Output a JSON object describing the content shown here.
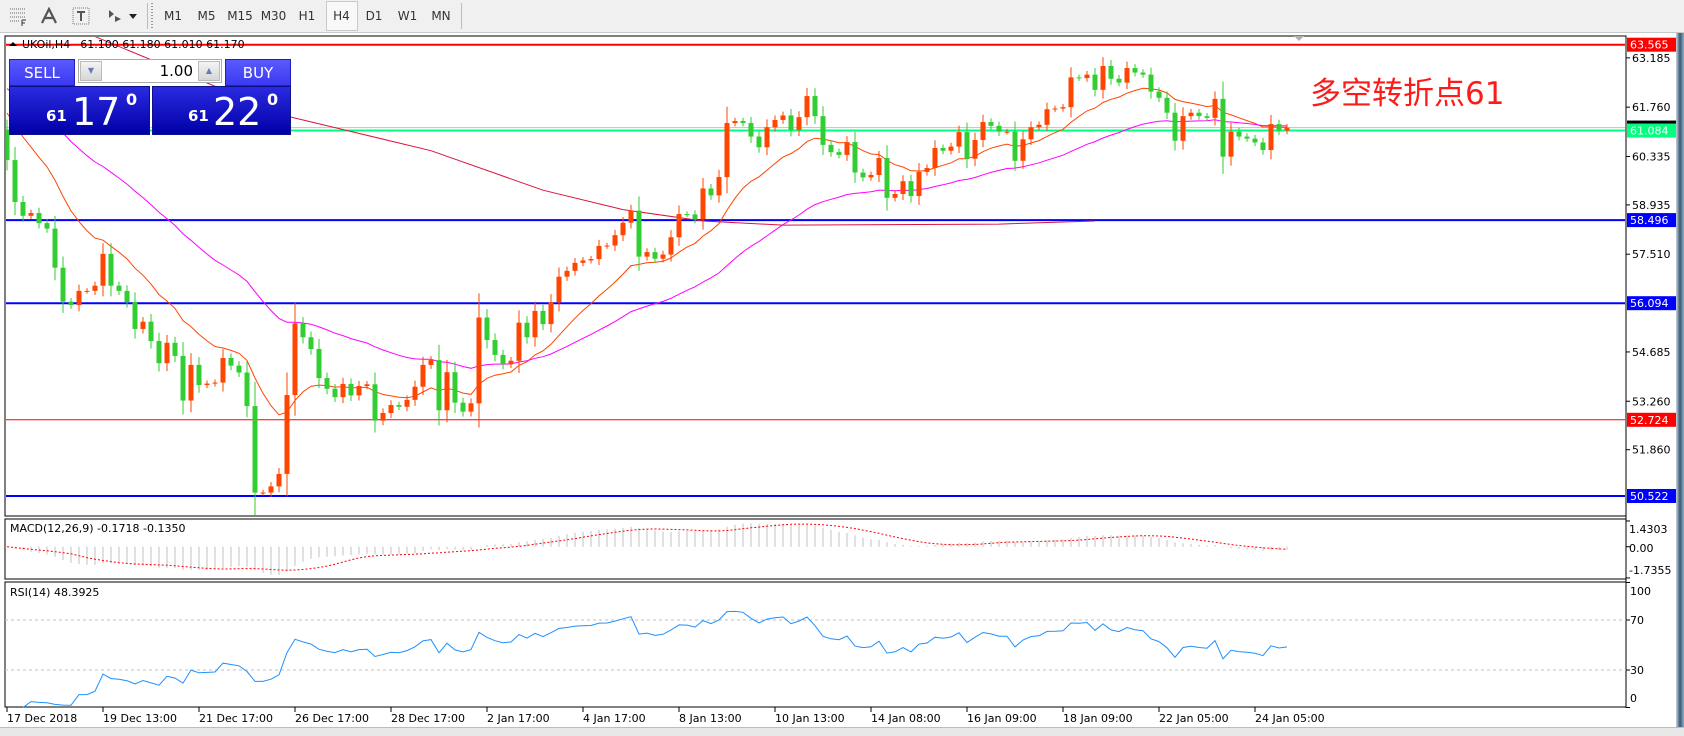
{
  "toolbar": {
    "icons": [
      "objects-list-icon",
      "text-icon",
      "text-label-icon",
      "shapes-icon"
    ],
    "timeframes": [
      "M1",
      "M5",
      "M15",
      "M30",
      "H1",
      "H4",
      "D1",
      "W1",
      "MN"
    ],
    "active_timeframe": "H4"
  },
  "chart_header": {
    "symbol": "UKOil,H4",
    "ohlc": "61.100 61.180 61.010 61.170"
  },
  "trade_panel": {
    "sell_label": "SELL",
    "buy_label": "BUY",
    "lot": "1.00",
    "sell_price_big_figure": "61",
    "sell_price_pips": "17",
    "sell_price_fraction": "0",
    "buy_price_big_figure": "61",
    "buy_price_pips": "22",
    "buy_price_fraction": "0"
  },
  "annotation": "多空转折点61",
  "colors": {
    "bull_candle": "#ff4500",
    "bear_candle": "#32cd32",
    "ma_fast": "#ff4500",
    "ma_mid": "#ff00ff",
    "ma_long": "#dc143c",
    "rsi_line": "#1e90ff",
    "macd_hist": "#c0c0c0",
    "macd_signal": "#ff0000"
  },
  "chart_data": {
    "type": "candlestick",
    "symbol": "UKOil",
    "timeframe": "H4",
    "first_open": 61.1,
    "close": [
      60.23,
      59.02,
      58.62,
      58.7,
      58.41,
      58.25,
      57.12,
      56.14,
      56.04,
      56.45,
      56.45,
      56.6,
      57.52,
      56.6,
      56.45,
      56.13,
      55.35,
      55.56,
      55.0,
      54.36,
      54.95,
      54.57,
      53.28,
      54.31,
      53.73,
      53.77,
      53.8,
      54.51,
      54.29,
      54.09,
      53.12,
      50.62,
      50.62,
      50.8,
      51.16,
      53.44,
      55.51,
      55.11,
      54.77,
      53.93,
      53.62,
      53.38,
      53.76,
      53.43,
      53.7,
      53.75,
      52.7,
      52.92,
      53.15,
      53.1,
      53.3,
      53.68,
      54.31,
      54.45,
      53.0,
      54.1,
      53.22,
      52.96,
      53.2,
      55.68,
      55.03,
      54.6,
      54.33,
      54.43,
      55.53,
      55.11,
      55.87,
      55.49,
      56.12,
      56.86,
      57.03,
      57.26,
      57.33,
      57.37,
      57.75,
      57.76,
      58.06,
      58.42,
      58.77,
      57.44,
      57.57,
      57.38,
      57.5,
      58.0,
      58.67,
      58.66,
      58.52,
      59.41,
      59.21,
      59.74,
      61.3,
      61.36,
      61.3,
      60.91,
      60.6,
      61.18,
      61.39,
      61.52,
      61.1,
      61.47,
      62.08,
      61.5,
      60.67,
      60.46,
      60.38,
      60.75,
      59.87,
      59.73,
      59.8,
      60.29,
      59.14,
      59.25,
      59.62,
      59.19,
      59.89,
      60.0,
      60.58,
      60.5,
      60.62,
      61.04,
      60.27,
      60.81,
      61.33,
      61.22,
      61.05,
      61.05,
      60.21,
      60.83,
      61.18,
      61.25,
      61.7,
      61.72,
      61.76,
      62.62,
      62.6,
      62.7,
      62.26,
      62.95,
      62.58,
      62.47,
      62.89,
      62.76,
      62.7,
      62.21,
      62.03,
      61.6,
      60.79,
      61.5,
      61.6,
      61.5,
      61.45,
      62.0,
      60.33,
      61.05,
      60.91,
      60.85,
      60.74,
      60.52,
      61.27,
      61.08,
      61.17
    ],
    "ma_long_points": [
      [
        11,
        63.8
      ],
      [
        35,
        61.5
      ],
      [
        53,
        60.5
      ],
      [
        67,
        59.36
      ],
      [
        77,
        58.8
      ],
      [
        87,
        58.47
      ],
      [
        97,
        58.35
      ],
      [
        124,
        58.38
      ],
      [
        136,
        58.47
      ]
    ],
    "y_range": [
      49.94,
      63.82
    ],
    "price_ticks": [
      "63.185",
      "61.760",
      "60.335",
      "58.935",
      "57.510",
      "54.685",
      "53.260",
      "51.860"
    ],
    "horizontal_lines": [
      {
        "price": 63.565,
        "label": "63.565",
        "color": "#ff0000",
        "tag_text": "#ffffff",
        "thick": true
      },
      {
        "price": 61.084,
        "label": "61.084",
        "color": "#00ff7f",
        "tag_text": "#ffffff",
        "thick": true
      },
      {
        "price": 58.496,
        "label": "58.496",
        "color": "#0000ff",
        "tag_text": "#ffffff",
        "thick": true
      },
      {
        "price": 56.094,
        "label": "56.094",
        "color": "#0000ff",
        "tag_text": "#ffffff",
        "thick": true
      },
      {
        "price": 52.724,
        "label": "52.724",
        "color": "#ff0000",
        "tag_text": "#ffffff",
        "thick": false
      },
      {
        "price": 50.522,
        "label": "50.522",
        "color": "#0000ff",
        "tag_text": "#ffffff",
        "thick": true
      }
    ],
    "bid_price": 61.17,
    "x_labels": [
      "17 Dec 2018",
      "19 Dec 13:00",
      "21 Dec 17:00",
      "26 Dec 17:00",
      "28 Dec 17:00",
      "2 Jan 17:00",
      "4 Jan 17:00",
      "8 Jan 13:00",
      "10 Jan 13:00",
      "14 Jan 08:00",
      "16 Jan 09:00",
      "18 Jan 09:00",
      "22 Jan 05:00",
      "24 Jan 05:00"
    ],
    "x_label_every_bars": 12,
    "macd": {
      "title": "MACD(12,26,9) -0.1718 -0.1350",
      "ticks": [
        "1.4303",
        "0.00",
        "-1.7355"
      ],
      "range": [
        -1.7355,
        1.4303
      ]
    },
    "rsi": {
      "title": "RSI(14) 48.3925",
      "ticks": [
        "100",
        "70",
        "30",
        "0"
      ],
      "levels": [
        70,
        30
      ],
      "range": [
        0,
        100
      ]
    }
  }
}
